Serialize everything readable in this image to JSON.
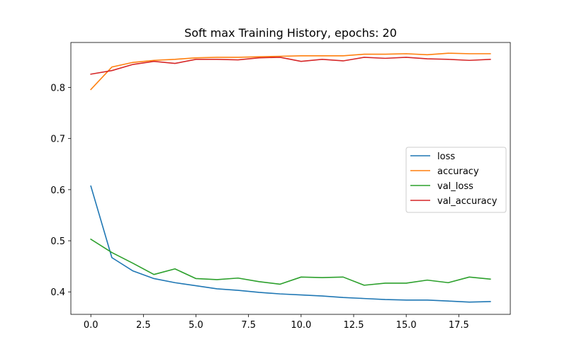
{
  "chart_data": {
    "type": "line",
    "title": "Soft max Training History, epochs: 20",
    "xlabel": "",
    "ylabel": "",
    "xlim": [
      -0.95,
      19.95
    ],
    "ylim": [
      0.356,
      0.888
    ],
    "xticks": [
      0.0,
      2.5,
      5.0,
      7.5,
      10.0,
      12.5,
      15.0,
      17.5
    ],
    "xtick_labels": [
      "0.0",
      "2.5",
      "5.0",
      "7.5",
      "10.0",
      "12.5",
      "15.0",
      "17.5"
    ],
    "yticks": [
      0.4,
      0.5,
      0.6,
      0.7,
      0.8
    ],
    "ytick_labels": [
      "0.4",
      "0.5",
      "0.6",
      "0.7",
      "0.8"
    ],
    "grid": false,
    "legend_position": "center-right",
    "x": [
      0,
      1,
      2,
      3,
      4,
      5,
      6,
      7,
      8,
      9,
      10,
      11,
      12,
      13,
      14,
      15,
      16,
      17,
      18,
      19
    ],
    "series": [
      {
        "name": "loss",
        "color": "#1f77b4",
        "values": [
          0.607,
          0.467,
          0.441,
          0.426,
          0.418,
          0.412,
          0.406,
          0.403,
          0.399,
          0.396,
          0.394,
          0.392,
          0.389,
          0.387,
          0.385,
          0.384,
          0.384,
          0.382,
          0.38,
          0.381
        ]
      },
      {
        "name": "accuracy",
        "color": "#ff7f0e",
        "values": [
          0.796,
          0.84,
          0.849,
          0.853,
          0.855,
          0.858,
          0.859,
          0.859,
          0.86,
          0.861,
          0.862,
          0.862,
          0.862,
          0.865,
          0.865,
          0.866,
          0.864,
          0.867,
          0.866,
          0.866
        ]
      },
      {
        "name": "val_loss",
        "color": "#2ca02c",
        "values": [
          0.503,
          0.477,
          0.456,
          0.434,
          0.445,
          0.426,
          0.424,
          0.427,
          0.42,
          0.415,
          0.429,
          0.428,
          0.429,
          0.413,
          0.417,
          0.417,
          0.423,
          0.418,
          0.429,
          0.425
        ]
      },
      {
        "name": "val_accuracy",
        "color": "#d62728",
        "values": [
          0.826,
          0.833,
          0.845,
          0.851,
          0.847,
          0.855,
          0.855,
          0.854,
          0.858,
          0.859,
          0.851,
          0.855,
          0.852,
          0.859,
          0.857,
          0.859,
          0.856,
          0.855,
          0.853,
          0.855
        ]
      }
    ]
  }
}
